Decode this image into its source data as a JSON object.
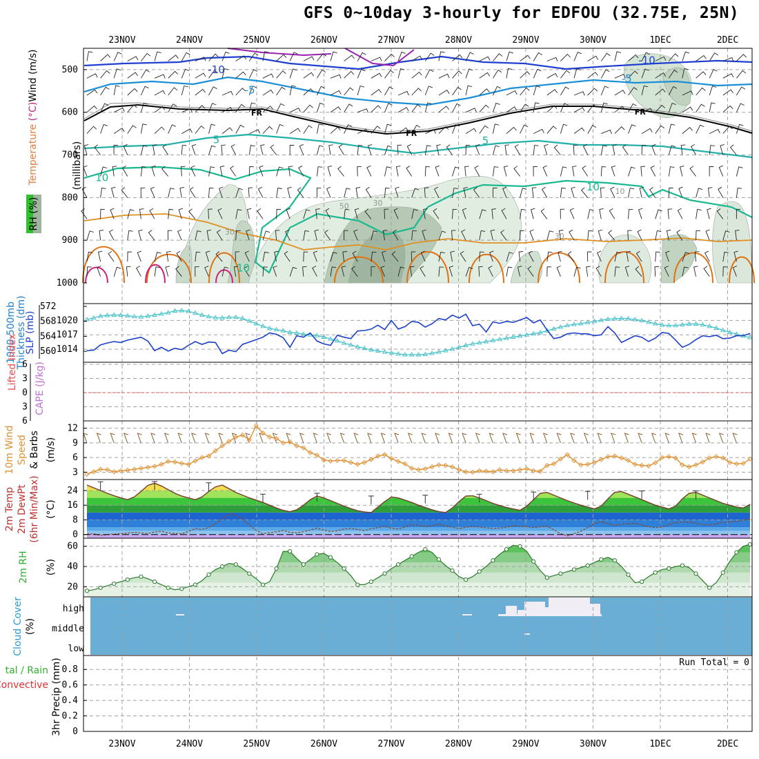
{
  "title": "GFS 0~10day 3-hourly for EDFOU (32.75E, 25N)",
  "colors": {
    "wind_barb": "#222222",
    "freezing": "#000000",
    "t_minus10": "#1f3fd0",
    "t_minus5": "#1a8fd8",
    "t_plus5": "#20b0a8",
    "t_plus10": "#18b890",
    "t_warm": "#e09020",
    "t_hot": "#e07010",
    "t_veryhot": "#d0207a",
    "rh_shade": "#b8d4b8",
    "slp": "#1a3fc8",
    "thickness": "#40c0c8",
    "li_zero": "#e05050",
    "wind_speed": "#e09030",
    "barbs10m": "#8a5a2a",
    "temp_fill": "#30c030",
    "rh_fill": "#30b030",
    "cloud": "#6aaed6",
    "grid": "#a0a0a0"
  },
  "chart_data": [
    {
      "panel": "upper-air",
      "type": "contour",
      "ylabel": "(millibars)",
      "side_labels": {
        "rh": "RH (%)",
        "temperature": "Temperature (°C)",
        "wind": "Wind (m/s)"
      },
      "ylim": [
        1000,
        450
      ],
      "yticks": [
        500,
        600,
        700,
        800,
        900,
        1000
      ],
      "contour_labels": [
        {
          "text": "-10",
          "x": 1.4,
          "p": 500
        },
        {
          "text": "-10",
          "x": 7.8,
          "p": 478
        },
        {
          "text": "-5",
          "x": 1.9,
          "p": 548
        },
        {
          "text": "-5",
          "x": 7.5,
          "p": 521
        },
        {
          "text": "FR",
          "x": 2.0,
          "p": 600
        },
        {
          "text": "FR",
          "x": 4.3,
          "p": 647
        },
        {
          "text": "FR",
          "x": 7.7,
          "p": 597
        },
        {
          "text": "5",
          "x": 1.4,
          "p": 664
        },
        {
          "text": "5",
          "x": 5.4,
          "p": 667
        },
        {
          "text": "10",
          "x": -0.3,
          "p": 753
        },
        {
          "text": "10",
          "x": 7.0,
          "p": 775
        },
        {
          "text": "10",
          "x": 1.8,
          "p": 965
        }
      ],
      "rh_labels": [
        {
          "text": "30",
          "x": 1.6,
          "p": 880
        },
        {
          "text": "50",
          "x": 3.3,
          "p": 820
        },
        {
          "text": "30",
          "x": 3.8,
          "p": 812
        },
        {
          "text": "30",
          "x": 6.5,
          "p": 890
        },
        {
          "text": "10",
          "x": 7.4,
          "p": 785
        }
      ]
    },
    {
      "panel": "pressure",
      "type": "line",
      "ylabel_left": "1000-500mb Thickness (dm)",
      "ylabel_right": "SLP (mb)",
      "thickness_ticks": [
        560,
        564,
        568,
        572
      ],
      "slp_ticks": [
        1014,
        1017,
        1020
      ],
      "series": [
        {
          "name": "SLP (mb)",
          "axis": "slp",
          "values": [
            1013.7,
            1013.8,
            1014.9,
            1015.3,
            1015.6,
            1015.4,
            1015.9,
            1016.2,
            1016.5,
            1015.7,
            1013.7,
            1014.4,
            1013.6,
            1014.2,
            1013.9,
            1014.8,
            1015.6,
            1015.0,
            1015.5,
            1015.4,
            1013.1,
            1013.8,
            1013.5,
            1015.0,
            1015.5,
            1016.0,
            1016.5,
            1017.4,
            1017.1,
            1016.4,
            1014.4,
            1016.8,
            1016.5,
            1017.4,
            1015.7,
            1015.1,
            1014.8,
            1016.9,
            1016.5,
            1016.2,
            1017.8,
            1017.9,
            1018.2,
            1019.0,
            1018.1,
            1020.0,
            1018.2,
            1018.7,
            1019.8,
            1019.6,
            1018.6,
            1019.3,
            1020.4,
            1020.1,
            1021.1,
            1020.5,
            1021.3,
            1018.9,
            1019.2,
            1017.6,
            1019.7,
            1019.4,
            1019.8,
            1019.6,
            1020.1,
            1020.6,
            1019.5,
            1020.1,
            1018.0,
            1016.2,
            1016.5,
            1017.2,
            1017.4,
            1017.2,
            1017.2,
            1016.8,
            1017.0,
            1018.7,
            1017.4,
            1015.4,
            1016.1,
            1016.8,
            1016.5,
            1015.6,
            1016.3,
            1017.5,
            1017.3,
            1015.9,
            1014.4,
            1015.0,
            1016.0,
            1016.8,
            1016.6,
            1016.9,
            1016.2,
            1016.3,
            1016.8,
            1016.8,
            1017.3
          ]
        },
        {
          "name": "Thickness (dm)",
          "axis": "thickness",
          "values": [
            568.5,
            568.9,
            569.4,
            569.6,
            569.7,
            569.7,
            569.5,
            569.3,
            569.2,
            569.4,
            569.7,
            570.0,
            570.3,
            570.8,
            570.9,
            570.7,
            570.2,
            569.7,
            569.3,
            569.0,
            568.9,
            569.1,
            569.1,
            568.8,
            568.1,
            567.4,
            566.7,
            566.1,
            565.8,
            565.5,
            565.1,
            564.9,
            564.6,
            564.4,
            564.2,
            563.8,
            563.3,
            562.8,
            562.2,
            561.7,
            561.2,
            560.8,
            560.4,
            560.1,
            559.8,
            559.6,
            559.3,
            559.1,
            559.1,
            559.1,
            559.2,
            559.5,
            559.8,
            560.2,
            560.6,
            561.1,
            561.6,
            562.0,
            562.3,
            562.6,
            562.9,
            563.2,
            563.5,
            563.8,
            564.1,
            564.4,
            564.7,
            565.0,
            565.5,
            566.0,
            566.5,
            566.9,
            567.2,
            567.4,
            567.7,
            568.0,
            568.3,
            568.6,
            568.7,
            568.8,
            568.7,
            568.5,
            568.2,
            567.8,
            567.4,
            567.0,
            566.9,
            566.9,
            567.1,
            567.3,
            567.3,
            567.1,
            566.7,
            566.2,
            565.6,
            565.1,
            564.6,
            564.1,
            563.7
          ]
        }
      ]
    },
    {
      "panel": "stability",
      "type": "line",
      "ylabel_left": "Lifted Index",
      "ylabel_right": "CAPE (J/kg)",
      "li_ticks": [
        -6,
        -3,
        0,
        3,
        6
      ],
      "li_tick_labels": [
        "6",
        "3",
        "0",
        "3",
        "6"
      ],
      "ylim": [
        -6,
        6
      ],
      "cape_values": []
    },
    {
      "panel": "wind10m",
      "type": "line",
      "ylabel": "10m Wind Speed & Barbs",
      "yunit": "(m/s)",
      "yticks": [
        3,
        6,
        9,
        12
      ],
      "ylim": [
        1.5,
        13.5
      ],
      "series": [
        {
          "name": "10m Wind Speed (m/s)",
          "values": [
            2.6,
            3.1,
            3.6,
            3.5,
            3.1,
            3.3,
            3.4,
            3.6,
            3.8,
            4.0,
            4.2,
            4.6,
            5.2,
            5.1,
            4.8,
            4.6,
            5.3,
            6.0,
            6.3,
            7.4,
            8.4,
            9.3,
            10.2,
            10.6,
            9.6,
            12.5,
            11.0,
            10.2,
            9.9,
            9.0,
            9.2,
            8.4,
            8.0,
            7.0,
            6.5,
            5.5,
            5.3,
            5.4,
            5.4,
            5.0,
            4.6,
            5.0,
            5.6,
            6.3,
            6.6,
            5.8,
            5.2,
            4.7,
            3.8,
            3.5,
            3.7,
            4.1,
            4.5,
            4.4,
            4.1,
            3.5,
            3.1,
            3.0,
            3.3,
            3.2,
            3.1,
            3.5,
            3.3,
            3.3,
            3.5,
            3.7,
            3.3,
            3.2,
            4.4,
            4.7,
            5.7,
            6.6,
            5.4,
            4.5,
            4.6,
            5.0,
            5.6,
            6.2,
            6.3,
            5.9,
            5.4,
            4.6,
            4.4,
            4.3,
            4.9,
            6.0,
            6.2,
            5.9,
            4.5,
            4.1,
            4.5,
            5.1,
            5.9,
            6.2,
            5.9,
            5.0,
            4.7,
            4.8,
            5.7
          ]
        }
      ]
    },
    {
      "panel": "temperature",
      "type": "area",
      "ylabel": "2m Temp 2m DewPt (6hr Min/Max)",
      "yunit": "(°C)",
      "yticks": [
        0,
        8,
        16,
        24
      ],
      "ylim": [
        -2,
        30
      ],
      "series": [
        {
          "name": "2m Temp",
          "values": [
            27.0,
            25.5,
            24.0,
            22.5,
            21.2,
            20.0,
            19.0,
            20.5,
            23.5,
            26.8,
            28.0,
            26.5,
            24.5,
            22.5,
            21.0,
            20.0,
            19.0,
            20.5,
            23.5,
            26.0,
            27.0,
            25.0,
            23.0,
            21.5,
            20.0,
            18.8,
            17.5,
            16.0,
            14.5,
            13.2,
            12.5,
            13.5,
            16.0,
            19.0,
            21.0,
            20.0,
            18.5,
            17.0,
            15.5,
            14.2,
            13.0,
            12.3,
            12.0,
            15.0,
            18.0,
            20.5,
            20.0,
            18.8,
            17.5,
            16.0,
            14.8,
            13.5,
            12.5,
            12.0,
            14.5,
            18.0,
            21.0,
            21.2,
            20.0,
            18.5,
            17.0,
            15.8,
            14.8,
            14.0,
            13.2,
            15.5,
            19.0,
            22.5,
            23.0,
            21.5,
            20.0,
            18.5,
            17.2,
            16.0,
            15.0,
            14.0,
            15.5,
            19.5,
            23.0,
            23.5,
            22.0,
            20.5,
            19.0,
            17.5,
            16.0,
            15.0,
            14.0,
            15.5,
            19.5,
            22.5,
            23.0,
            21.5,
            20.0,
            18.5,
            17.0,
            16.0,
            15.0,
            14.5,
            16.5
          ]
        },
        {
          "name": "2m DewPt",
          "values": [
            0.2,
            0.4,
            -0.5,
            -0.1,
            0.3,
            0.5,
            0.8,
            1.2,
            0.9,
            0.6,
            1.4,
            1.8,
            0.9,
            0.6,
            0.4,
            1.7,
            3.2,
            2.8,
            3.8,
            5.9,
            8.5,
            11.2,
            10.4,
            8.8,
            5.2,
            2.3,
            0.4,
            1.0,
            1.5,
            2.2,
            1.2,
            0.9,
            1.6,
            2.4,
            3.5,
            2.4,
            1.6,
            2.0,
            3.0,
            3.4,
            2.8,
            2.1,
            3.2,
            3.8,
            4.5,
            3.5,
            3.0,
            4.1,
            5.4,
            5.2,
            4.3,
            4.8,
            5.6,
            4.7,
            4.0,
            3.2,
            4.0,
            4.4,
            4.1,
            3.6,
            3.4,
            3.5,
            4.0,
            4.8,
            4.6,
            4.3,
            3.8,
            4.2,
            4.6,
            2.5,
            0.5,
            -0.8,
            0.5,
            1.8,
            3.8,
            5.9,
            7.1,
            6.0,
            4.9,
            5.6,
            5.9,
            6.1,
            5.1,
            4.3,
            3.8,
            4.1,
            5.4,
            6.6,
            6.9,
            6.8,
            6.2,
            5.4,
            5.1,
            5.8,
            6.6,
            6.9,
            7.2,
            7.8,
            8.4
          ]
        },
        {
          "name": "6hr Max",
          "values": [
            28.8,
            null,
            null,
            null,
            null,
            null,
            null,
            null,
            28.9,
            null,
            null,
            null,
            null,
            null,
            null,
            null,
            28.2,
            null,
            null,
            null,
            null,
            null,
            null,
            null,
            22.0,
            null,
            null,
            null,
            null,
            null,
            null,
            null,
            22.5,
            null,
            null,
            null,
            null,
            null,
            null,
            null,
            21.0,
            null,
            null,
            null,
            null,
            null,
            null,
            null,
            21.5,
            null,
            null,
            null,
            null,
            null,
            null,
            null,
            22.0,
            null,
            null,
            null,
            null,
            null,
            null,
            null,
            23.2,
            null,
            null,
            null,
            null,
            null,
            null,
            null,
            23.5,
            null,
            null,
            null,
            null,
            null,
            null,
            null,
            23.8,
            null,
            null,
            null,
            null,
            null,
            null,
            null,
            23.8,
            null,
            null,
            null,
            null,
            null,
            null
          ]
        }
      ]
    },
    {
      "panel": "rh2m",
      "type": "area",
      "ylabel": "2m RH",
      "yunit": "(%)",
      "yticks": [
        20,
        40,
        60
      ],
      "ylim": [
        10,
        68
      ],
      "series": [
        {
          "name": "2m RH (%)",
          "values": [
            16,
            17,
            19,
            21,
            23,
            25,
            27,
            29,
            30,
            28,
            25,
            22,
            19,
            17,
            18,
            20,
            22,
            26,
            32,
            37,
            40,
            43,
            42,
            38,
            33,
            28,
            22,
            25,
            38,
            55,
            55,
            48,
            42,
            47,
            52,
            53,
            49,
            44,
            38,
            31,
            22,
            22,
            25,
            29,
            33,
            38,
            42,
            46,
            50,
            54,
            57,
            54,
            47,
            41,
            36,
            30,
            27,
            30,
            35,
            40,
            46,
            52,
            57,
            61,
            60,
            55,
            45,
            36,
            29,
            31,
            33,
            35,
            37,
            39,
            41,
            44,
            47,
            49,
            46,
            40,
            32,
            24,
            25,
            30,
            34,
            37,
            38,
            40,
            41,
            39,
            33,
            26,
            19,
            24,
            34,
            45,
            54,
            60,
            62
          ]
        }
      ]
    },
    {
      "panel": "cloud",
      "type": "heatmap",
      "ylabel": "Cloud Cover",
      "yunit": "(%)",
      "levels": [
        "high",
        "middle",
        "low"
      ]
    },
    {
      "panel": "precip",
      "type": "bar",
      "ylabel_left": "Total / Rain Convective",
      "ylabel": "3hr Precip (mm)",
      "run_total_label": "Run Total = 0",
      "yticks": [
        0,
        0.2,
        0.4,
        0.6,
        0.8
      ],
      "ylim": [
        0,
        0.98
      ],
      "values": []
    }
  ],
  "date_labels": [
    "23NOV",
    "24NOV",
    "25NOV",
    "26NOV",
    "27NOV",
    "28NOV",
    "29NOV",
    "30NOV",
    "1DEC",
    "2DEC"
  ]
}
